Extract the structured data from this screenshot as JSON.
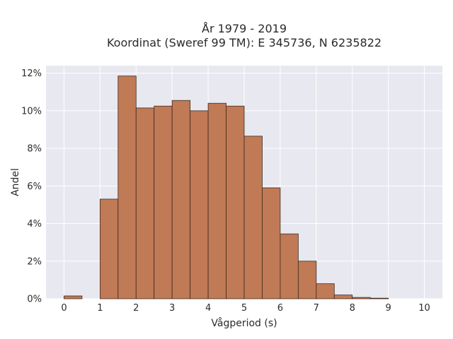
{
  "chart_data": {
    "type": "bar",
    "title_line1": "År 1979 - 2019",
    "title_line2": "Koordinat (Sweref 99 TM): E 345736, N 6235822",
    "xlabel": "Vågperiod (s)",
    "ylabel": "Andel",
    "bin_width": 0.5,
    "bins": [
      {
        "x": 0.0,
        "value": 0.15
      },
      {
        "x": 0.5,
        "value": 0.0
      },
      {
        "x": 1.0,
        "value": 5.3
      },
      {
        "x": 1.5,
        "value": 11.85
      },
      {
        "x": 2.0,
        "value": 10.15
      },
      {
        "x": 2.5,
        "value": 10.25
      },
      {
        "x": 3.0,
        "value": 10.55
      },
      {
        "x": 3.5,
        "value": 10.0
      },
      {
        "x": 4.0,
        "value": 10.4
      },
      {
        "x": 4.5,
        "value": 10.25
      },
      {
        "x": 5.0,
        "value": 8.65
      },
      {
        "x": 5.5,
        "value": 5.9
      },
      {
        "x": 6.0,
        "value": 3.45
      },
      {
        "x": 6.5,
        "value": 2.0
      },
      {
        "x": 7.0,
        "value": 0.8
      },
      {
        "x": 7.5,
        "value": 0.2
      },
      {
        "x": 8.0,
        "value": 0.07
      },
      {
        "x": 8.5,
        "value": 0.03
      },
      {
        "x": 9.0,
        "value": 0.0
      },
      {
        "x": 9.5,
        "value": 0.0
      }
    ],
    "xlim": [
      -0.5,
      10.5
    ],
    "ylim": [
      0,
      12.4
    ],
    "x_ticks": [
      0,
      1,
      2,
      3,
      4,
      5,
      6,
      7,
      8,
      9,
      10
    ],
    "y_ticks": [
      0,
      2,
      4,
      6,
      8,
      10,
      12
    ],
    "y_tick_labels": [
      "0%",
      "2%",
      "4%",
      "6%",
      "8%",
      "10%",
      "12%"
    ],
    "grid": true,
    "colors": {
      "bar_fill": "#c07a55",
      "bar_edge": "#3d2a20",
      "plot_bg": "#e8e8f0",
      "grid": "#ffffff"
    }
  }
}
